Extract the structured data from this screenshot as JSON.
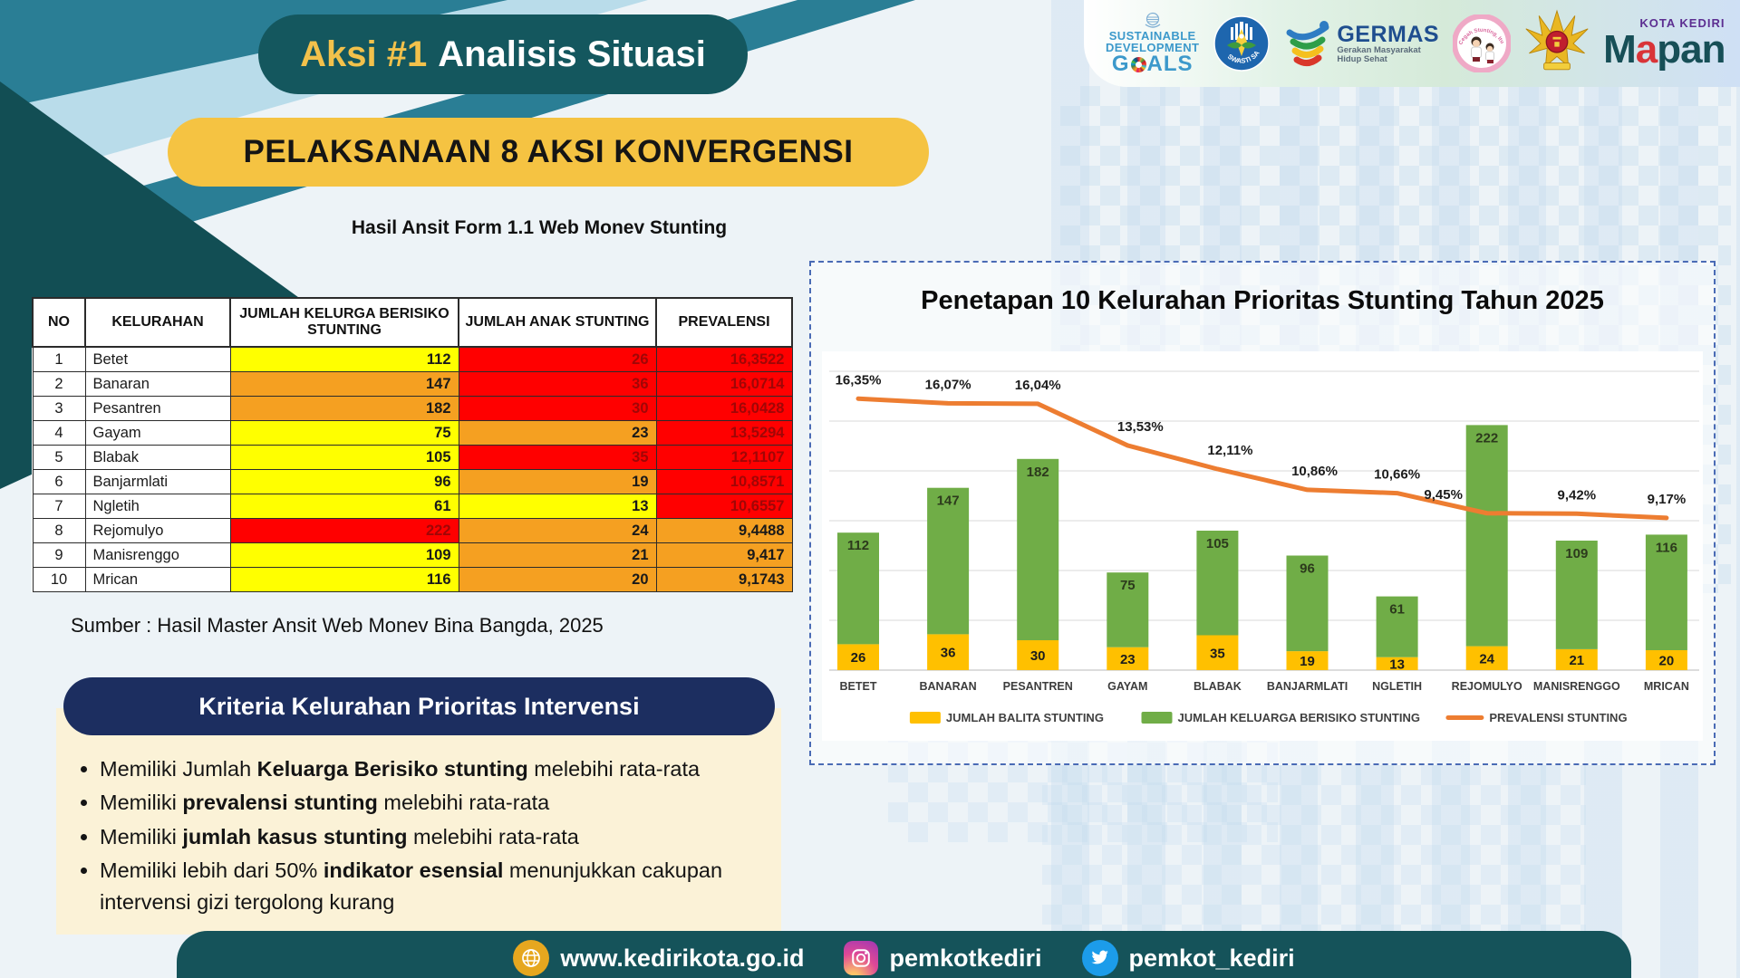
{
  "header": {
    "badge_accent": "Aksi #1",
    "badge_rest": "Analisis Situasi",
    "banner": "PELAKSANAAN 8 AKSI KONVERGENSI",
    "subtitle": "Hasil Ansit Form 1.1 Web Monev Stunting"
  },
  "logos": {
    "sdg": {
      "line1": "SUSTAINABLE",
      "line2": "DEVELOPMENT",
      "goals_g": "G",
      "goals_rest": "ALS"
    },
    "swasti": {
      "label": "SWASTI SABA"
    },
    "germas": {
      "title": "GERMAS",
      "sub1": "Gerakan Masyarakat",
      "sub2": "Hidup Sehat"
    },
    "cegah": {
      "label": "Cegah Stunting, Itu Penting!"
    },
    "mapan": {
      "kota": "KOTA KEDIRI",
      "m": "M",
      "a": "a",
      "rest": "pan"
    }
  },
  "table": {
    "columns": [
      "NO",
      "KELURAHAN",
      "JUMLAH KELURGA BERISIKO STUNTING",
      "JUMLAH ANAK STUNTING",
      "PREVALENSI"
    ],
    "rows": [
      {
        "no": "1",
        "kelurahan": "Betet",
        "keluarga": {
          "value": "112",
          "bg": "#FFFF00",
          "fg": "#1a1a1a"
        },
        "anak": {
          "value": "26",
          "bg": "#FF0000",
          "fg": "#A00606"
        },
        "prevalensi": {
          "value": "16,3522",
          "bg": "#FF0000",
          "fg": "#A00606"
        }
      },
      {
        "no": "2",
        "kelurahan": "Banaran",
        "keluarga": {
          "value": "147",
          "bg": "#F5A021",
          "fg": "#1a1a1a"
        },
        "anak": {
          "value": "36",
          "bg": "#FF0000",
          "fg": "#A00606"
        },
        "prevalensi": {
          "value": "16,0714",
          "bg": "#FF0000",
          "fg": "#A00606"
        }
      },
      {
        "no": "3",
        "kelurahan": "Pesantren",
        "keluarga": {
          "value": "182",
          "bg": "#F5A021",
          "fg": "#1a1a1a"
        },
        "anak": {
          "value": "30",
          "bg": "#FF0000",
          "fg": "#A00606"
        },
        "prevalensi": {
          "value": "16,0428",
          "bg": "#FF0000",
          "fg": "#A00606"
        }
      },
      {
        "no": "4",
        "kelurahan": "Gayam",
        "keluarga": {
          "value": "75",
          "bg": "#FFFF00",
          "fg": "#1a1a1a"
        },
        "anak": {
          "value": "23",
          "bg": "#F5A021",
          "fg": "#1a1a1a"
        },
        "prevalensi": {
          "value": "13,5294",
          "bg": "#FF0000",
          "fg": "#A00606"
        }
      },
      {
        "no": "5",
        "kelurahan": "Blabak",
        "keluarga": {
          "value": "105",
          "bg": "#FFFF00",
          "fg": "#1a1a1a"
        },
        "anak": {
          "value": "35",
          "bg": "#FF0000",
          "fg": "#A00606"
        },
        "prevalensi": {
          "value": "12,1107",
          "bg": "#FF0000",
          "fg": "#A00606"
        }
      },
      {
        "no": "6",
        "kelurahan": "Banjarmlati",
        "keluarga": {
          "value": "96",
          "bg": "#FFFF00",
          "fg": "#1a1a1a"
        },
        "anak": {
          "value": "19",
          "bg": "#F5A021",
          "fg": "#1a1a1a"
        },
        "prevalensi": {
          "value": "10,8571",
          "bg": "#FF0000",
          "fg": "#A00606"
        }
      },
      {
        "no": "7",
        "kelurahan": "Ngletih",
        "keluarga": {
          "value": "61",
          "bg": "#FFFF00",
          "fg": "#1a1a1a"
        },
        "anak": {
          "value": "13",
          "bg": "#FFFF00",
          "fg": "#1a1a1a"
        },
        "prevalensi": {
          "value": "10,6557",
          "bg": "#FF0000",
          "fg": "#A00606"
        }
      },
      {
        "no": "8",
        "kelurahan": "Rejomulyo",
        "keluarga": {
          "value": "222",
          "bg": "#FF0000",
          "fg": "#A00606"
        },
        "anak": {
          "value": "24",
          "bg": "#F5A021",
          "fg": "#1a1a1a"
        },
        "prevalensi": {
          "value": "9,4488",
          "bg": "#F5A021",
          "fg": "#1a1a1a"
        }
      },
      {
        "no": "9",
        "kelurahan": "Manisrenggo",
        "keluarga": {
          "value": "109",
          "bg": "#FFFF00",
          "fg": "#1a1a1a"
        },
        "anak": {
          "value": "21",
          "bg": "#F5A021",
          "fg": "#1a1a1a"
        },
        "prevalensi": {
          "value": "9,417",
          "bg": "#F5A021",
          "fg": "#1a1a1a"
        }
      },
      {
        "no": "10",
        "kelurahan": "Mrican",
        "keluarga": {
          "value": "116",
          "bg": "#FFFF00",
          "fg": "#1a1a1a"
        },
        "anak": {
          "value": "20",
          "bg": "#F5A021",
          "fg": "#1a1a1a"
        },
        "prevalensi": {
          "value": "9,1743",
          "bg": "#F5A021",
          "fg": "#1a1a1a"
        }
      }
    ]
  },
  "source": "Sumber : Hasil Master Ansit Web Monev Bina Bangda, 2025",
  "criteria": {
    "title": "Kriteria Kelurahan Prioritas Intervensi",
    "bullets": [
      {
        "pre": "Memiliki Jumlah ",
        "bold": "Keluarga Berisiko stunting",
        "post": " melebihi rata-rata"
      },
      {
        "pre": "Memiliki ",
        "bold": "prevalensi stunting",
        "post": " melebihi rata-rata"
      },
      {
        "pre": "Memiliki ",
        "bold": "jumlah kasus stunting",
        "post": " melebihi rata-rata"
      },
      {
        "pre": "Memiliki lebih dari 50% ",
        "bold": "indikator esensial",
        "post": " menunjukkan cakupan intervensi gizi tergolong kurang"
      }
    ]
  },
  "chart_data": {
    "type": "bar",
    "subtype": "stacked-bar-with-line",
    "title": "Penetapan 10 Kelurahan Prioritas Stunting Tahun 2025",
    "categories": [
      "BETET",
      "BANARAN",
      "PESANTREN",
      "GAYAM",
      "BLABAK",
      "BANJARMLATI",
      "NGLETIH",
      "REJOMULYO",
      "MANISRENGGO",
      "MRICAN"
    ],
    "series": [
      {
        "name": "JUMLAH BALITA STUNTING",
        "type": "bar",
        "color": "#FFC000",
        "values": [
          26,
          36,
          30,
          23,
          35,
          19,
          13,
          24,
          21,
          20
        ]
      },
      {
        "name": "JUMLAH KELUARGA BERISIKO STUNTING",
        "type": "bar",
        "color": "#70AD47",
        "values": [
          112,
          147,
          182,
          75,
          105,
          96,
          61,
          222,
          109,
          116
        ]
      },
      {
        "name": "PREVALENSI STUNTING",
        "type": "line",
        "color": "#ED7D31",
        "values": [
          16.35,
          16.07,
          16.04,
          13.53,
          12.11,
          10.86,
          10.66,
          9.45,
          9.42,
          9.17
        ],
        "labels": [
          "16,35%",
          "16,07%",
          "16,04%",
          "13,53%",
          "12,11%",
          "10,86%",
          "10,66%",
          "9,45%",
          "9,42%",
          "9,17%"
        ]
      }
    ],
    "primary_axis": {
      "min": 0,
      "max": 300,
      "grid_step": 50,
      "grid": true,
      "labels_visible": false
    },
    "secondary_axis": {
      "min": 0,
      "max": 18,
      "labels_visible": false
    },
    "legend_position": "bottom",
    "bar_stacked": true
  },
  "footer": {
    "website": "www.kedirikota.go.id",
    "instagram": "pemkotkediri",
    "twitter": "pemkot_kediri"
  },
  "colors": {
    "teal_banner": "#14575E",
    "yellow_banner": "#F5C342",
    "navy_pill": "#1C2E60",
    "cream_box": "#FBF2D7",
    "footer_bar": "#15535A",
    "deco_teal": "#2A7E95",
    "deco_dark_teal": "#124E54",
    "deco_light_blue": "#B9DCEA",
    "chart_border": "#4A6BB5"
  }
}
